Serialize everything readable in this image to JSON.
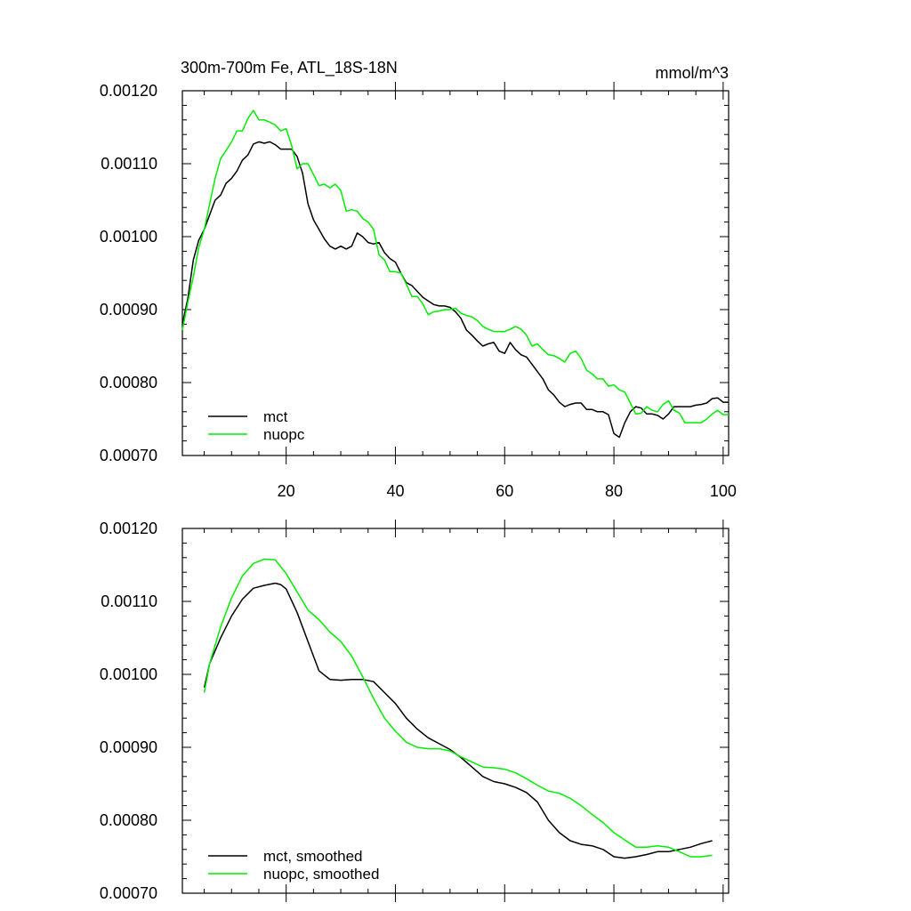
{
  "chart_data": [
    {
      "type": "line",
      "title": "300m-700m Fe, ATL_18S-18N",
      "units": "mmol/m^3",
      "xlim": [
        1,
        101
      ],
      "ylim": [
        0.0007,
        0.0012
      ],
      "y_ticks": [
        "0.00070",
        "0.00080",
        "0.00090",
        "0.00100",
        "0.00110",
        "0.00120"
      ],
      "x_ticks": [
        "20",
        "40",
        "60",
        "80",
        "100"
      ],
      "legend_position": "bottom-left",
      "series": [
        {
          "name": "mct",
          "color": "#000000",
          "x": [
            1,
            2,
            3,
            4,
            5,
            6,
            7,
            8,
            9,
            10,
            11,
            12,
            13,
            14,
            15,
            16,
            17,
            18,
            19,
            20,
            21,
            22,
            23,
            24,
            25,
            26,
            27,
            28,
            29,
            30,
            31,
            32,
            33,
            34,
            35,
            36,
            37,
            38,
            39,
            40,
            41,
            42,
            43,
            44,
            45,
            46,
            47,
            48,
            49,
            50,
            51,
            52,
            53,
            54,
            55,
            56,
            57,
            58,
            59,
            60,
            61,
            62,
            63,
            64,
            65,
            66,
            67,
            68,
            69,
            70,
            71,
            72,
            73,
            74,
            75,
            76,
            77,
            78,
            79,
            80,
            81,
            82,
            83,
            84,
            85,
            86,
            87,
            88,
            89,
            90,
            91,
            92,
            93,
            94,
            95,
            96,
            97,
            98,
            99,
            100,
            101
          ],
          "values": [
            0.00088,
            0.000915,
            0.000968,
            0.000995,
            0.00101,
            0.00103,
            0.00105,
            0.001057,
            0.001073,
            0.00108,
            0.00109,
            0.001105,
            0.001112,
            0.001127,
            0.00113,
            0.001128,
            0.00113,
            0.001126,
            0.00112,
            0.00112,
            0.00112,
            0.00111,
            0.001087,
            0.001045,
            0.001023,
            0.00101,
            0.000997,
            0.000987,
            0.000983,
            0.000987,
            0.000983,
            0.000987,
            0.001005,
            0.001,
            0.000992,
            0.00099,
            0.000992,
            0.000978,
            0.00097,
            0.000965,
            0.00095,
            0.000937,
            0.000933,
            0.000925,
            0.000917,
            0.000912,
            0.000907,
            0.000905,
            0.000905,
            0.000903,
            0.000897,
            0.000888,
            0.000872,
            0.000865,
            0.000857,
            0.00085,
            0.000853,
            0.000855,
            0.000843,
            0.00084,
            0.000855,
            0.000845,
            0.000838,
            0.000835,
            0.000825,
            0.000815,
            0.000805,
            0.00079,
            0.000783,
            0.000773,
            0.000767,
            0.00077,
            0.000772,
            0.000772,
            0.000763,
            0.000763,
            0.00076,
            0.00076,
            0.000756,
            0.00073,
            0.000725,
            0.000745,
            0.00076,
            0.000767,
            0.000765,
            0.000757,
            0.000757,
            0.000755,
            0.00075,
            0.000757,
            0.000767,
            0.000767,
            0.000767,
            0.000767,
            0.000769,
            0.00077,
            0.000772,
            0.000778,
            0.000779,
            0.000773,
            0.000773
          ]
        },
        {
          "name": "nuopc",
          "color": "#00ee00",
          "x": [
            1,
            2,
            3,
            4,
            5,
            6,
            7,
            8,
            9,
            10,
            11,
            12,
            13,
            14,
            15,
            16,
            17,
            18,
            19,
            20,
            21,
            22,
            23,
            24,
            25,
            26,
            27,
            28,
            29,
            30,
            31,
            32,
            33,
            34,
            35,
            36,
            37,
            38,
            39,
            40,
            41,
            42,
            43,
            44,
            45,
            46,
            47,
            48,
            49,
            50,
            51,
            52,
            53,
            54,
            55,
            56,
            57,
            58,
            59,
            60,
            61,
            62,
            63,
            64,
            65,
            66,
            67,
            68,
            69,
            70,
            71,
            72,
            73,
            74,
            75,
            76,
            77,
            78,
            79,
            80,
            81,
            82,
            83,
            84,
            85,
            86,
            87,
            88,
            89,
            90,
            91,
            92,
            93,
            94,
            95,
            96,
            97,
            98,
            99,
            100,
            101
          ],
          "values": [
            0.000872,
            0.00091,
            0.000945,
            0.000985,
            0.00101,
            0.001045,
            0.00108,
            0.001107,
            0.001118,
            0.00113,
            0.001145,
            0.001145,
            0.001162,
            0.001173,
            0.00116,
            0.00116,
            0.001157,
            0.001153,
            0.001145,
            0.001148,
            0.001125,
            0.001093,
            0.0011,
            0.0011,
            0.001085,
            0.00107,
            0.001072,
            0.001067,
            0.001072,
            0.001063,
            0.001035,
            0.001037,
            0.001035,
            0.001025,
            0.00102,
            0.00101,
            0.000975,
            0.000968,
            0.000952,
            0.000952,
            0.00095,
            0.000935,
            0.000918,
            0.000918,
            0.000908,
            0.000893,
            0.000897,
            0.000898,
            0.0009,
            0.0009,
            0.000902,
            0.000895,
            0.000892,
            0.00089,
            0.000885,
            0.000877,
            0.000873,
            0.00087,
            0.00087,
            0.00087,
            0.000873,
            0.000877,
            0.000873,
            0.000865,
            0.00085,
            0.000853,
            0.000845,
            0.000838,
            0.000837,
            0.000833,
            0.000828,
            0.00084,
            0.000843,
            0.000833,
            0.000817,
            0.000812,
            0.000805,
            0.000805,
            0.000795,
            0.000797,
            0.00079,
            0.000787,
            0.000772,
            0.000757,
            0.000758,
            0.000767,
            0.000762,
            0.00076,
            0.00077,
            0.000775,
            0.000762,
            0.000758,
            0.000745,
            0.000745,
            0.000745,
            0.000745,
            0.00075,
            0.000757,
            0.000762,
            0.000756,
            0.000756
          ]
        }
      ]
    },
    {
      "type": "line",
      "title": "",
      "xlim": [
        1,
        101
      ],
      "ylim": [
        0.0007,
        0.0012
      ],
      "y_ticks": [
        "0.00070",
        "0.00080",
        "0.00090",
        "0.00100",
        "0.00110",
        "0.00120"
      ],
      "x_ticks": [],
      "legend_position": "bottom-left",
      "series": [
        {
          "name": "mct, smoothed",
          "color": "#000000",
          "x": [
            5,
            6,
            8,
            10,
            12,
            14,
            16,
            18,
            19,
            20,
            22,
            24,
            26,
            28,
            30,
            32,
            34,
            36,
            38,
            40,
            42,
            44,
            46,
            48,
            50,
            52,
            54,
            56,
            58,
            60,
            62,
            64,
            66,
            68,
            70,
            72,
            74,
            76,
            78,
            80,
            82,
            84,
            86,
            88,
            90,
            92,
            94,
            96,
            98
          ],
          "values": [
            0.000982,
            0.001015,
            0.00105,
            0.00108,
            0.001103,
            0.001118,
            0.001122,
            0.001125,
            0.001123,
            0.001117,
            0.001085,
            0.001045,
            0.001005,
            0.000993,
            0.000992,
            0.000993,
            0.000993,
            0.00099,
            0.000975,
            0.00096,
            0.00094,
            0.000925,
            0.000913,
            0.000905,
            0.000897,
            0.000886,
            0.000873,
            0.00086,
            0.000853,
            0.00085,
            0.000845,
            0.000838,
            0.000825,
            0.0008,
            0.000783,
            0.000772,
            0.000767,
            0.000765,
            0.00076,
            0.00075,
            0.000748,
            0.00075,
            0.000753,
            0.000757,
            0.000757,
            0.00076,
            0.000763,
            0.000768,
            0.000772
          ]
        },
        {
          "name": "nuopc, smoothed",
          "color": "#00ee00",
          "x": [
            5,
            6,
            8,
            10,
            12,
            14,
            16,
            18,
            20,
            22,
            24,
            26,
            28,
            30,
            32,
            34,
            36,
            38,
            40,
            42,
            44,
            46,
            48,
            50,
            52,
            54,
            56,
            58,
            60,
            62,
            64,
            66,
            68,
            70,
            72,
            74,
            76,
            78,
            80,
            82,
            84,
            86,
            88,
            90,
            92,
            94,
            96,
            98
          ],
          "values": [
            0.000975,
            0.001015,
            0.001065,
            0.001105,
            0.001135,
            0.001152,
            0.001158,
            0.001157,
            0.001138,
            0.001113,
            0.001088,
            0.001075,
            0.001058,
            0.001045,
            0.001025,
            0.000997,
            0.000967,
            0.00094,
            0.000922,
            0.000907,
            0.0009,
            0.000898,
            0.000898,
            0.000895,
            0.000887,
            0.00088,
            0.000873,
            0.000872,
            0.00087,
            0.000865,
            0.000857,
            0.000848,
            0.00084,
            0.000837,
            0.00083,
            0.00082,
            0.000808,
            0.000797,
            0.000783,
            0.000773,
            0.000763,
            0.000763,
            0.000765,
            0.000763,
            0.000757,
            0.00075,
            0.00075,
            0.000752
          ]
        }
      ]
    }
  ]
}
